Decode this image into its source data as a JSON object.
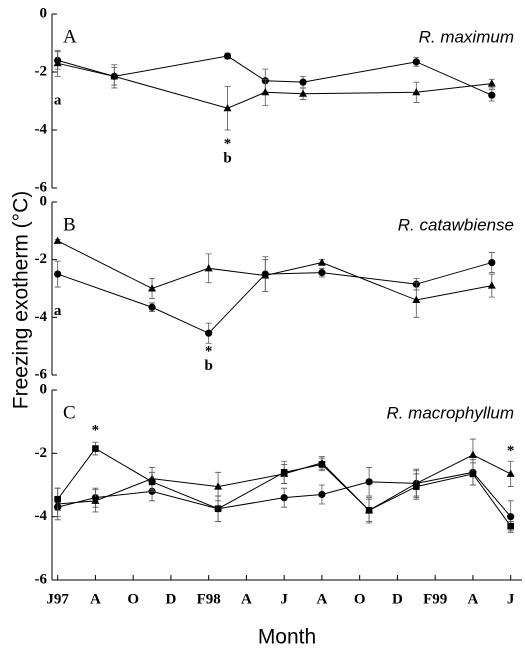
{
  "chart_data": [
    {
      "type": "line",
      "panel": "A",
      "title": "R. maximum",
      "ylabel": "Freezing exotherm (°C)",
      "xlim": [
        -0.3,
        24.6
      ],
      "ylim": [
        -6,
        0
      ],
      "yticks": [
        0,
        -2,
        -4,
        -6
      ],
      "series": [
        {
          "marker": "circle",
          "color": "#000000",
          "x": [
            0,
            3,
            9,
            11,
            13,
            19,
            23
          ],
          "values": [
            -1.6,
            -2.15,
            -1.45,
            -2.3,
            -2.35,
            -1.65,
            -2.8
          ],
          "errors": [
            0.3,
            0.4,
            0.1,
            0.4,
            0.2,
            0.15,
            0.2
          ]
        },
        {
          "marker": "triangle",
          "color": "#000000",
          "x": [
            0,
            3,
            9,
            11,
            13,
            19,
            23
          ],
          "values": [
            -1.7,
            -2.15,
            -3.25,
            -2.7,
            -2.75,
            -2.7,
            -2.4
          ],
          "errors": [
            0.45,
            0.3,
            0.75,
            0.45,
            0.2,
            0.35,
            0.15
          ]
        }
      ],
      "annotations": [
        {
          "text": "a",
          "x": 0,
          "y": -3.0
        },
        {
          "text": "*",
          "x": 9,
          "y": -4.5
        },
        {
          "text": "b",
          "x": 9,
          "y": -5.0
        }
      ]
    },
    {
      "type": "line",
      "panel": "B",
      "title": "R. catawbiense",
      "xlim": [
        -0.3,
        24.6
      ],
      "ylim": [
        -6,
        0
      ],
      "yticks": [
        0,
        -2,
        -4,
        -6
      ],
      "series": [
        {
          "marker": "circle",
          "color": "#000000",
          "x": [
            0,
            5,
            8,
            11,
            14,
            19,
            23
          ],
          "values": [
            -2.5,
            -3.65,
            -4.55,
            -2.5,
            -2.45,
            -2.85,
            -2.1
          ],
          "errors": [
            0.45,
            0.15,
            0.35,
            0.6,
            0.15,
            0.2,
            0.35
          ]
        },
        {
          "marker": "triangle",
          "color": "#000000",
          "x": [
            0,
            5,
            8,
            11,
            14,
            19,
            23
          ],
          "values": [
            -1.35,
            -3.0,
            -2.3,
            -2.55,
            -2.1,
            -3.4,
            -2.9
          ],
          "errors": [
            0.05,
            0.35,
            0.5,
            0.55,
            0.1,
            0.6,
            0.4
          ]
        }
      ],
      "annotations": [
        {
          "text": "a",
          "x": 0,
          "y": -3.8
        },
        {
          "text": "*",
          "x": 8,
          "y": -5.2
        },
        {
          "text": "b",
          "x": 8,
          "y": -5.7
        }
      ]
    },
    {
      "type": "line",
      "panel": "C",
      "title": "R. macrophyllum",
      "xlabel": "Month",
      "xlim": [
        -0.3,
        24.6
      ],
      "ylim": [
        -6,
        0
      ],
      "yticks": [
        0,
        -2,
        -4,
        -6
      ],
      "xticks": [
        {
          "value": 0,
          "label": "J97"
        },
        {
          "value": 2,
          "label": "A"
        },
        {
          "value": 4,
          "label": "O"
        },
        {
          "value": 6,
          "label": "D"
        },
        {
          "value": 8,
          "label": "F98"
        },
        {
          "value": 10,
          "label": "A"
        },
        {
          "value": 12,
          "label": "J"
        },
        {
          "value": 14,
          "label": "A"
        },
        {
          "value": 16,
          "label": "O"
        },
        {
          "value": 18,
          "label": "D"
        },
        {
          "value": 20,
          "label": "F99"
        },
        {
          "value": 22,
          "label": "A"
        },
        {
          "value": 24,
          "label": "J"
        }
      ],
      "series": [
        {
          "marker": "circle",
          "color": "#000000",
          "x": [
            0,
            2,
            5,
            8.5,
            12,
            14,
            16.5,
            19,
            22,
            24
          ],
          "values": [
            -3.7,
            -3.4,
            -3.2,
            -3.75,
            -3.4,
            -3.3,
            -2.9,
            -2.95,
            -2.6,
            -4.0
          ],
          "errors": [
            0.3,
            0.3,
            0.3,
            0.4,
            0.3,
            0.3,
            0.45,
            0.4,
            0.4,
            0.5
          ]
        },
        {
          "marker": "triangle",
          "color": "#000000",
          "x": [
            0,
            2,
            5,
            8.5,
            12,
            14,
            16.5,
            19,
            22,
            24
          ],
          "values": [
            -3.6,
            -3.5,
            -2.8,
            -3.05,
            -2.65,
            -2.3,
            -3.8,
            -2.95,
            -2.05,
            -2.65
          ],
          "errors": [
            0.5,
            0.35,
            0.35,
            0.45,
            0.3,
            0.2,
            0.35,
            0.45,
            0.5,
            0.4
          ]
        },
        {
          "marker": "square",
          "color": "#000000",
          "x": [
            0,
            2,
            5,
            8.5,
            12,
            14,
            16.5,
            19,
            22,
            24
          ],
          "values": [
            -3.45,
            -1.85,
            -2.9,
            -3.75,
            -2.6,
            -2.35,
            -3.8,
            -3.05,
            -2.65,
            -4.3
          ],
          "errors": [
            0.35,
            0.2,
            0.3,
            0.4,
            0.35,
            0.2,
            0.4,
            0.4,
            0.35,
            0.15
          ]
        }
      ],
      "annotations": [
        {
          "text": "*",
          "x": 2,
          "y": -1.3
        },
        {
          "text": "*",
          "x": 24,
          "y": -1.95
        }
      ]
    }
  ]
}
